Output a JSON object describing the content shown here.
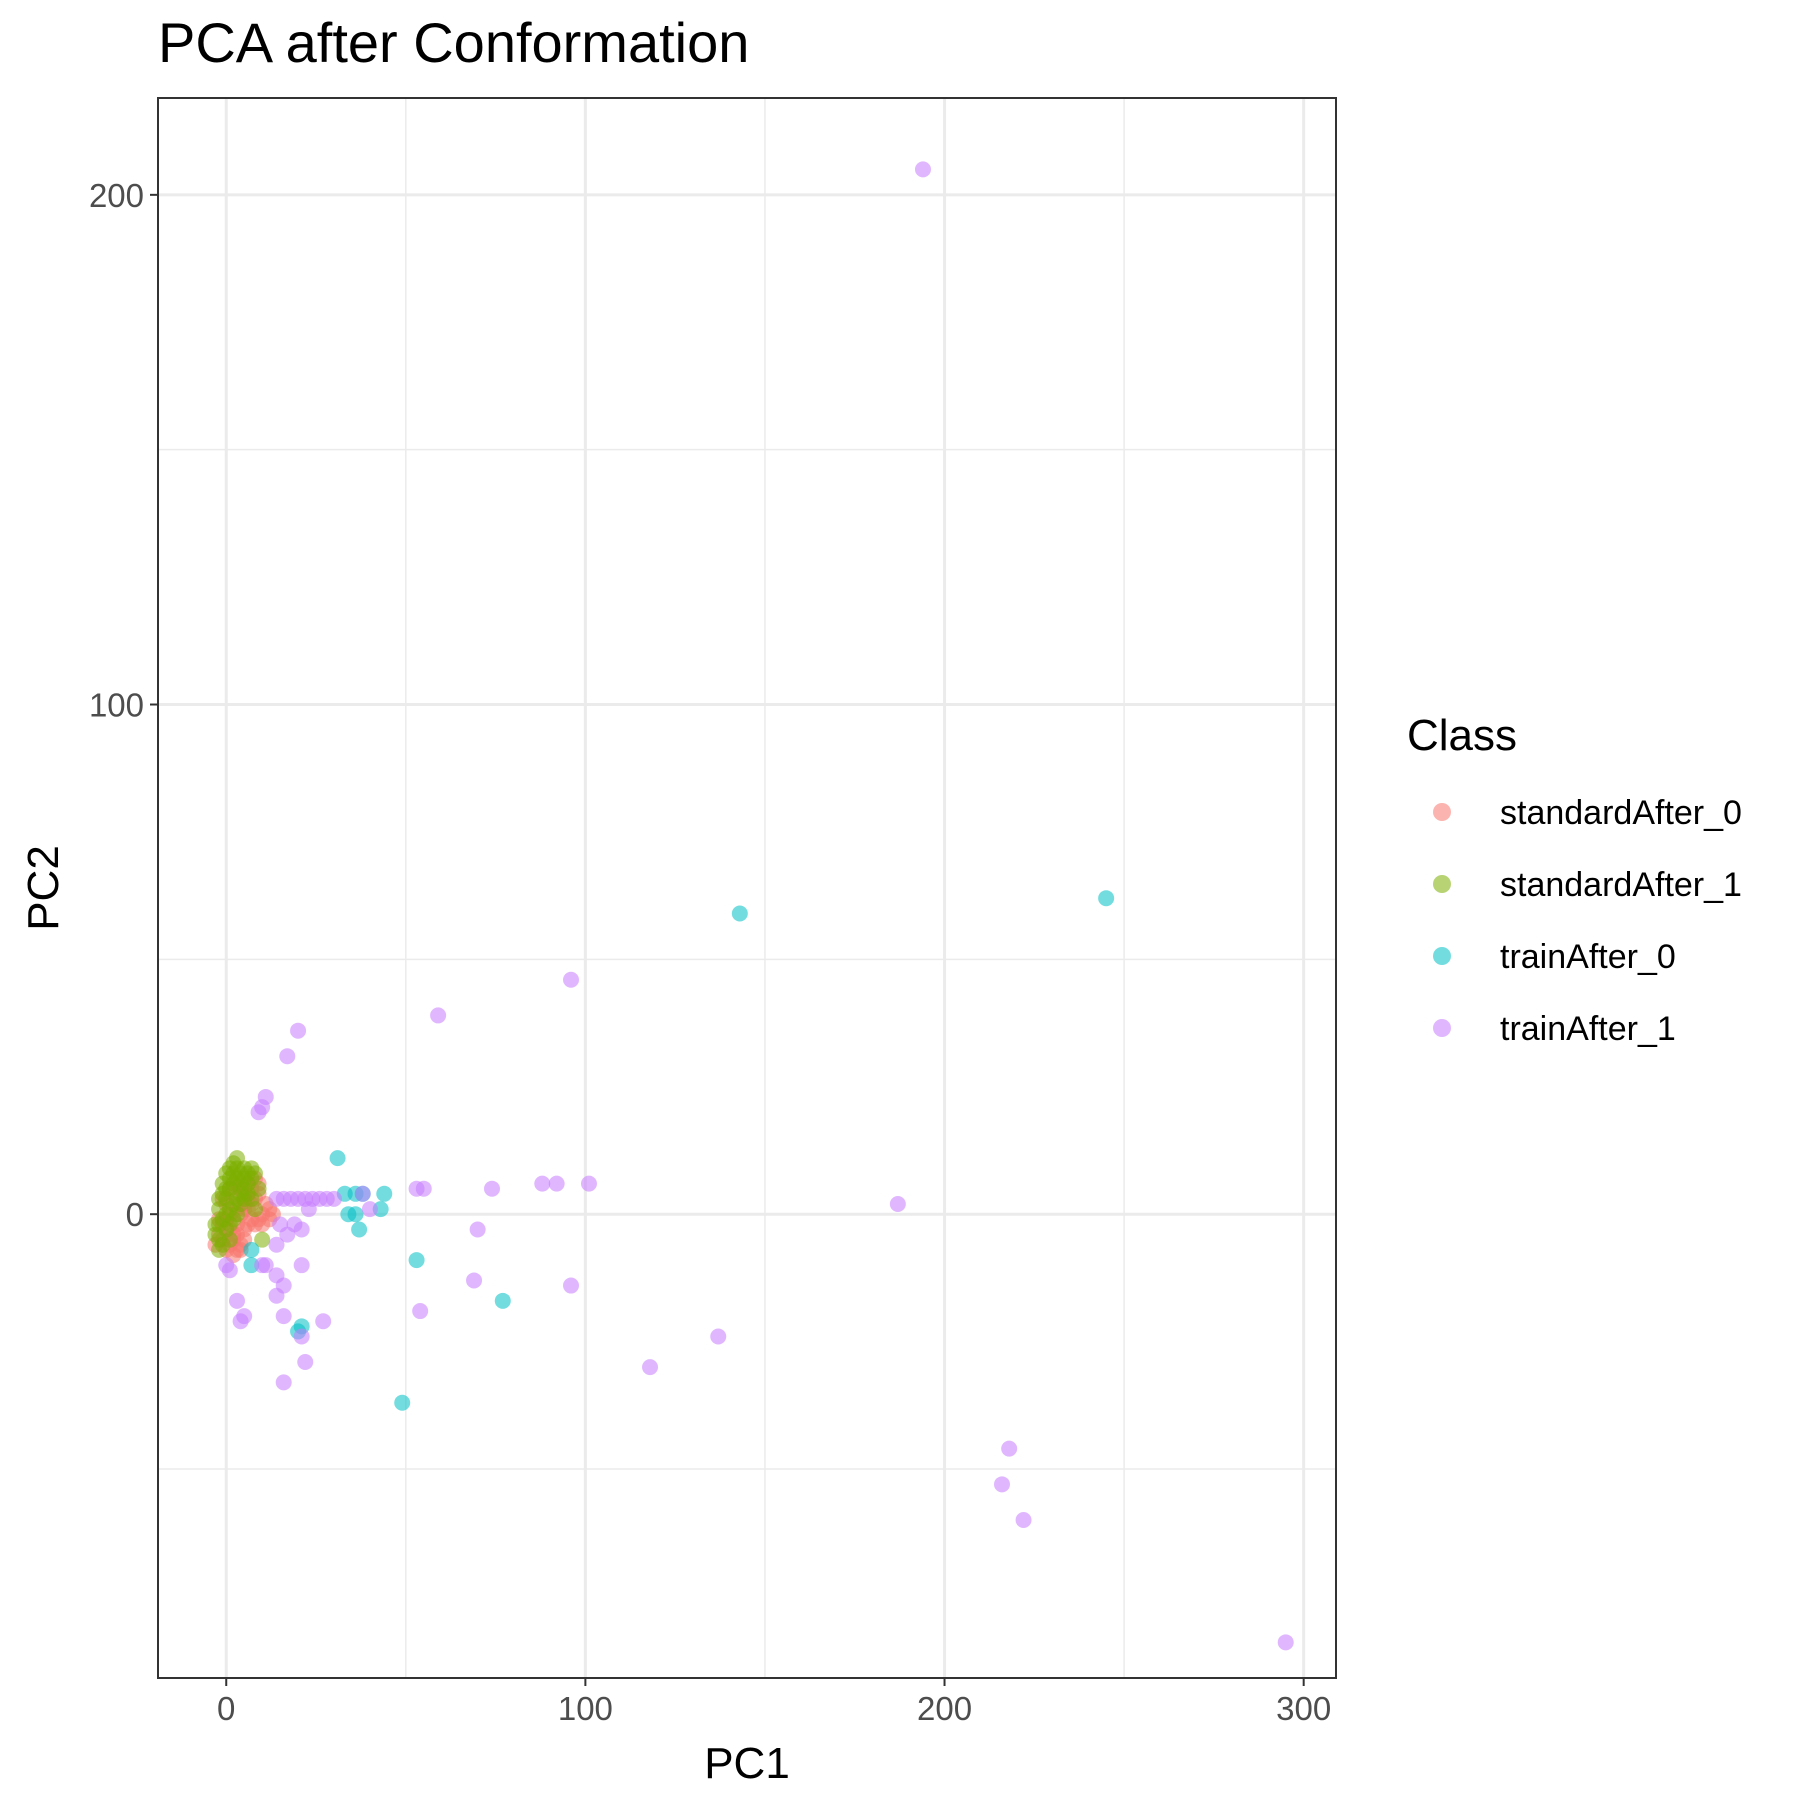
{
  "chart_data": {
    "type": "scatter",
    "title": "PCA after Conformation",
    "xlabel": "PC1",
    "ylabel": "PC2",
    "xlim": [
      -19,
      309
    ],
    "ylim": [
      -91,
      219
    ],
    "x_ticks": [
      0,
      100,
      200,
      300
    ],
    "y_ticks": [
      0,
      100,
      200
    ],
    "x_minor": [
      50,
      150,
      250
    ],
    "y_minor": [
      -50,
      50,
      150
    ],
    "grid": true,
    "legend_title": "Class",
    "legend_position": "right",
    "series": [
      {
        "name": "standardAfter_0",
        "color": "#F8766D",
        "points": [
          [
            -1,
            -2
          ],
          [
            -2,
            -4
          ],
          [
            -3,
            -6
          ],
          [
            0,
            -1
          ],
          [
            1,
            -3
          ],
          [
            2,
            -5
          ],
          [
            3,
            -2
          ],
          [
            4,
            0
          ],
          [
            5,
            2
          ],
          [
            6,
            3
          ],
          [
            7,
            5
          ],
          [
            8,
            7
          ],
          [
            9,
            6
          ],
          [
            5,
            -3
          ],
          [
            4,
            -6
          ],
          [
            3,
            -7
          ],
          [
            2,
            -4
          ],
          [
            1,
            0
          ],
          [
            0,
            2
          ],
          [
            -1,
            3
          ],
          [
            2,
            4
          ],
          [
            3,
            6
          ],
          [
            4,
            5
          ],
          [
            5,
            4
          ],
          [
            6,
            1
          ],
          [
            7,
            -1
          ],
          [
            8,
            -2
          ],
          [
            1,
            -6
          ],
          [
            -2,
            -1
          ],
          [
            3,
            -4
          ],
          [
            9,
            -1
          ],
          [
            10,
            0
          ],
          [
            11,
            2
          ],
          [
            12,
            1
          ],
          [
            13,
            0
          ],
          [
            7,
            2
          ],
          [
            6,
            -2
          ],
          [
            -1,
            -5
          ],
          [
            0,
            -7
          ],
          [
            2,
            -8
          ],
          [
            4,
            -7
          ],
          [
            5,
            -5
          ],
          [
            8,
            3
          ],
          [
            6,
            6
          ],
          [
            9,
            4
          ],
          [
            10,
            -2
          ],
          [
            12,
            -1
          ],
          [
            3,
            1
          ],
          [
            5,
            1
          ],
          [
            1,
            5
          ]
        ]
      },
      {
        "name": "standardAfter_1",
        "color": "#7CAE00",
        "points": [
          [
            0,
            0
          ],
          [
            1,
            1
          ],
          [
            2,
            2
          ],
          [
            3,
            3
          ],
          [
            -1,
            -1
          ],
          [
            -2,
            -2
          ],
          [
            0,
            3
          ],
          [
            1,
            5
          ],
          [
            2,
            6
          ],
          [
            3,
            7
          ],
          [
            4,
            8
          ],
          [
            5,
            9
          ],
          [
            6,
            8
          ],
          [
            7,
            7
          ],
          [
            -1,
            4
          ],
          [
            0,
            5
          ],
          [
            1,
            7
          ],
          [
            2,
            8
          ],
          [
            3,
            9
          ],
          [
            4,
            6
          ],
          [
            5,
            5
          ],
          [
            6,
            4
          ],
          [
            -2,
            1
          ],
          [
            -3,
            -2
          ],
          [
            -2,
            -5
          ],
          [
            -1,
            -6
          ],
          [
            0,
            -3
          ],
          [
            1,
            -2
          ],
          [
            2,
            -1
          ],
          [
            3,
            0
          ],
          [
            4,
            2
          ],
          [
            5,
            3
          ],
          [
            6,
            6
          ],
          [
            7,
            9
          ],
          [
            8,
            8
          ],
          [
            9,
            5
          ],
          [
            2,
            10
          ],
          [
            3,
            11
          ],
          [
            1,
            9
          ],
          [
            0,
            8
          ],
          [
            -1,
            6
          ],
          [
            -2,
            3
          ],
          [
            -3,
            -4
          ],
          [
            -2,
            -7
          ],
          [
            1,
            -5
          ],
          [
            4,
            4
          ],
          [
            5,
            7
          ],
          [
            7,
            3
          ],
          [
            10,
            -5
          ],
          [
            8,
            1
          ]
        ]
      },
      {
        "name": "trainAfter_0",
        "color": "#00BFC4",
        "points": [
          [
            31,
            11
          ],
          [
            33,
            4
          ],
          [
            34,
            0
          ],
          [
            36,
            4
          ],
          [
            36,
            0
          ],
          [
            37,
            -3
          ],
          [
            38,
            4
          ],
          [
            43,
            1
          ],
          [
            44,
            4
          ],
          [
            7,
            -10
          ],
          [
            7,
            -7
          ],
          [
            20,
            -23
          ],
          [
            21,
            -22
          ],
          [
            49,
            -37
          ],
          [
            53,
            -9
          ],
          [
            77,
            -17
          ],
          [
            143,
            59
          ],
          [
            245,
            62
          ]
        ]
      },
      {
        "name": "trainAfter_1",
        "color": "#C77CFF",
        "points": [
          [
            194,
            205
          ],
          [
            96,
            46
          ],
          [
            59,
            39
          ],
          [
            20,
            36
          ],
          [
            17,
            31
          ],
          [
            11,
            23
          ],
          [
            10,
            21
          ],
          [
            9,
            20
          ],
          [
            14,
            3
          ],
          [
            16,
            3
          ],
          [
            18,
            3
          ],
          [
            20,
            3
          ],
          [
            22,
            3
          ],
          [
            24,
            3
          ],
          [
            26,
            3
          ],
          [
            28,
            3
          ],
          [
            30,
            3
          ],
          [
            38,
            4
          ],
          [
            40,
            1
          ],
          [
            23,
            1
          ],
          [
            53,
            5
          ],
          [
            55,
            5
          ],
          [
            74,
            5
          ],
          [
            88,
            6
          ],
          [
            92,
            6
          ],
          [
            101,
            6
          ],
          [
            187,
            2
          ],
          [
            15,
            -2
          ],
          [
            17,
            -4
          ],
          [
            19,
            -2
          ],
          [
            21,
            -3
          ],
          [
            14,
            -6
          ],
          [
            70,
            -3
          ],
          [
            21,
            -10
          ],
          [
            14,
            -12
          ],
          [
            16,
            -14
          ],
          [
            69,
            -13
          ],
          [
            96,
            -14
          ],
          [
            14,
            -16
          ],
          [
            16,
            -20
          ],
          [
            54,
            -19
          ],
          [
            3,
            -17
          ],
          [
            4,
            -21
          ],
          [
            5,
            -20
          ],
          [
            27,
            -21
          ],
          [
            21,
            -24
          ],
          [
            137,
            -24
          ],
          [
            22,
            -29
          ],
          [
            118,
            -30
          ],
          [
            16,
            -33
          ],
          [
            218,
            -46
          ],
          [
            216,
            -53
          ],
          [
            222,
            -60
          ],
          [
            295,
            -84
          ],
          [
            0,
            -10
          ],
          [
            1,
            -11
          ],
          [
            10,
            -10
          ],
          [
            11,
            -10
          ]
        ]
      }
    ]
  }
}
